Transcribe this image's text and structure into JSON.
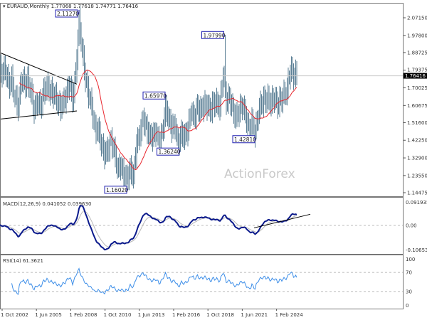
{
  "header": {
    "symbol": "EURAUD,Monthly",
    "ohlc": "1.77068 1.77618 1.74771 1.76416"
  },
  "watermark": "ActionForex",
  "macd_label": "MACD(12,26,9) 0.041052 0.039630",
  "rsi_label": "RSI(14) 61.3621",
  "current_price": "1.76416",
  "colors": {
    "bars": "#5b7f95",
    "ma": "#e8262d",
    "macd": "#0b1a8c",
    "signal": "#b8b8b8",
    "rsi": "#3d8ee8",
    "pivot_box": "#2020b0"
  },
  "chart_data": {
    "type": "ohlc",
    "x_ticks": [
      "1 Oct 2002",
      "1 Jun 2005",
      "1 Feb 2008",
      "1 Oct 2010",
      "1 Jun 2013",
      "1 Feb 2016",
      "1 Oct 2018",
      "1 Jun 2021",
      "1 Feb 2024"
    ],
    "y_ticks": [
      "2.07150",
      "1.97800",
      "1.88725",
      "1.79375",
      "1.70025",
      "1.60675",
      "1.51600",
      "1.42250",
      "1.32900",
      "1.23550",
      "1.14475"
    ],
    "ylim": [
      1.14475,
      2.0715
    ],
    "macd_ticks": [
      "0.091935",
      "0.00",
      "-0.106534"
    ],
    "macd_ylim": [
      -0.106534,
      0.091935
    ],
    "rsi_ticks": [
      "100",
      "70",
      "30",
      "0"
    ],
    "quarter_start": "2002-07",
    "quarterly_close": [
      1.8,
      1.78,
      1.8,
      1.72,
      1.74,
      1.65,
      1.6,
      1.75,
      1.72,
      1.74,
      1.68,
      1.58,
      1.63,
      1.6,
      1.68,
      1.71,
      1.68,
      1.67,
      1.64,
      1.6,
      1.62,
      1.66,
      1.73,
      1.64,
      1.78,
      2.05,
      1.9,
      1.75,
      1.67,
      1.6,
      1.48,
      1.48,
      1.4,
      1.35,
      1.37,
      1.42,
      1.37,
      1.27,
      1.29,
      1.24,
      1.22,
      1.27,
      1.23,
      1.41,
      1.45,
      1.54,
      1.49,
      1.45,
      1.44,
      1.47,
      1.41,
      1.46,
      1.59,
      1.54,
      1.49,
      1.5,
      1.4,
      1.46,
      1.44,
      1.48,
      1.58,
      1.54,
      1.6,
      1.58,
      1.61,
      1.61,
      1.58,
      1.62,
      1.62,
      1.6,
      1.78,
      1.63,
      1.65,
      1.59,
      1.54,
      1.58,
      1.61,
      1.56,
      1.48,
      1.52,
      1.45,
      1.57,
      1.62,
      1.64,
      1.64,
      1.62,
      1.65,
      1.61,
      1.64,
      1.66,
      1.69,
      1.8,
      1.77,
      1.764
    ],
    "pivots": [
      {
        "label": "2.11270",
        "date": "2008-10",
        "price": 2.1127,
        "side": "left"
      },
      {
        "label": "1.97990",
        "date": "2020-03",
        "price": 1.9799,
        "side": "left"
      },
      {
        "label": "1.65970",
        "date": "2015-08",
        "price": 1.6597,
        "side": "left"
      },
      {
        "label": "1.36240",
        "date": "2016-09",
        "price": 1.3624,
        "side": "left"
      },
      {
        "label": "1.42810",
        "date": "2022-08",
        "price": 1.4281,
        "side": "left"
      },
      {
        "label": "1.16020",
        "date": "2012-08",
        "price": 1.1602,
        "side": "left"
      }
    ]
  }
}
